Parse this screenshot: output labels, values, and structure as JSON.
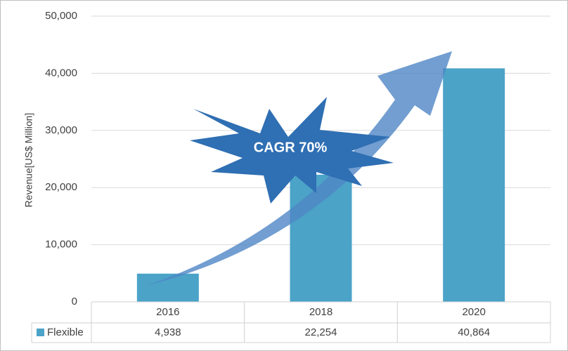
{
  "chart_data": {
    "type": "bar",
    "y_axis_label": "Revenue[US$ Million]",
    "annotation": "CAGR 70%",
    "categories": [
      "2016",
      "2018",
      "2020"
    ],
    "series": [
      {
        "name": "Flexible",
        "color": "#4ba3c8",
        "values": [
          4938,
          22254,
          40864
        ],
        "value_labels": [
          "4,938",
          "22,254",
          "40,864"
        ]
      }
    ],
    "ylim": [
      0,
      50000
    ],
    "yticks": [
      0,
      {
        "value": 10000,
        "label": "10,000"
      },
      {
        "value": 20000,
        "label": "20,000"
      },
      {
        "value": 30000,
        "label": "30,000"
      },
      {
        "value": 40000,
        "label": "40,000"
      },
      {
        "value": 50000,
        "label": "50,000"
      }
    ],
    "grid": true,
    "data_table": true
  }
}
